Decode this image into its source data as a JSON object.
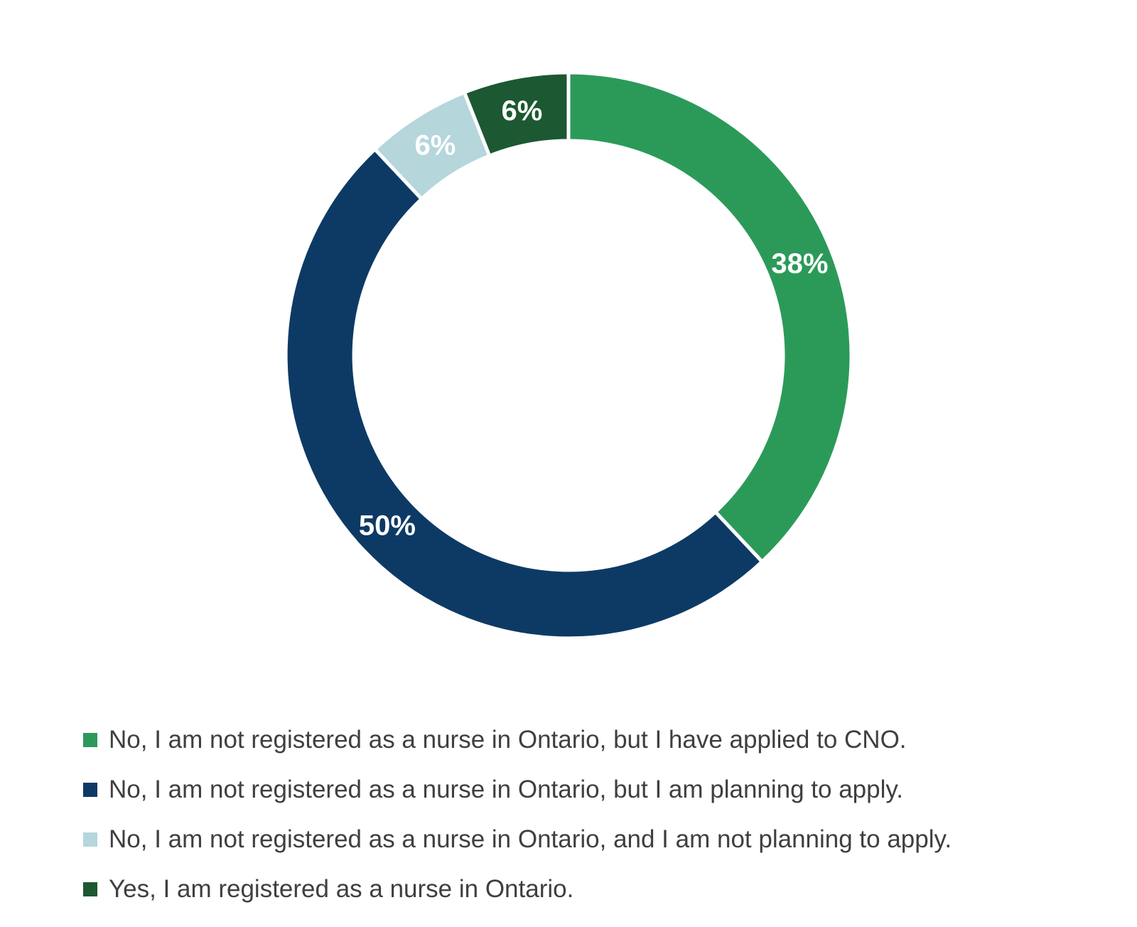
{
  "chart_data": {
    "type": "pie",
    "subtype": "donut",
    "title": "",
    "direction": "clockwise",
    "start_angle_deg": 0,
    "donut_hole_ratio": 0.76,
    "grid": false,
    "legend_position": "bottom-left",
    "slice_label_color": "#FFFFFF",
    "slice_gap_color": "#FFFFFF",
    "legend_text_color": "#3F3F3F",
    "slices": [
      {
        "label": "No, I am not registered as a nurse in Ontario, but I have applied to CNO.",
        "value": 38,
        "display": "38%",
        "color": "#2B9A59"
      },
      {
        "label": "No, I am not registered as a nurse in Ontario, but I am planning to apply.",
        "value": 50,
        "display": "50%",
        "color": "#0D3A64"
      },
      {
        "label": "No, I am not registered as a nurse in Ontario, and I am not planning to apply.",
        "value": 6,
        "display": "6%",
        "color": "#B5D6DB"
      },
      {
        "label": "Yes, I am registered as a nurse in Ontario.",
        "value": 6,
        "display": "6%",
        "color": "#1C5832"
      }
    ]
  }
}
